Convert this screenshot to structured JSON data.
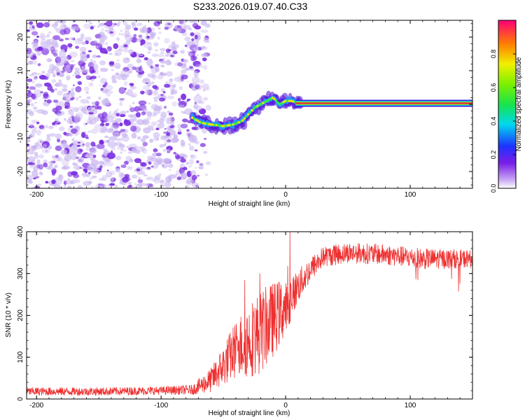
{
  "title": "S233.2026.019.07.40.C33",
  "colors": {
    "spectrogram_noise": "#7a2de0",
    "spectrogram_noise_light": "#c9b6f0",
    "signal_core": "#e8204a",
    "snr_line": "#ee3030",
    "axis": "#000000"
  },
  "chart_data": [
    {
      "type": "heatmap",
      "name": "spectrogram",
      "xlabel": "Height of straight line (km)",
      "ylabel": "Frequency (Hz)",
      "xlim": [
        -208,
        150
      ],
      "ylim": [
        -25,
        25
      ],
      "xticks": [
        -200,
        -100,
        0,
        100
      ],
      "xtick_labels": [
        "-200",
        "-100",
        "0",
        "100"
      ],
      "yticks": [
        -20,
        -10,
        0,
        10,
        20
      ],
      "ytick_labels": [
        "-20",
        "-10",
        "0",
        "10",
        "20"
      ],
      "noise_region_x": [
        -208,
        -70
      ],
      "signal_track": [
        {
          "x": -75,
          "y": -4
        },
        {
          "x": -68,
          "y": -5.5
        },
        {
          "x": -60,
          "y": -6
        },
        {
          "x": -50,
          "y": -6.5
        },
        {
          "x": -42,
          "y": -6
        },
        {
          "x": -35,
          "y": -5
        },
        {
          "x": -30,
          "y": -3
        },
        {
          "x": -25,
          "y": -1
        },
        {
          "x": -20,
          "y": 0
        },
        {
          "x": -15,
          "y": 1
        },
        {
          "x": -10,
          "y": 2
        },
        {
          "x": -5,
          "y": 0
        },
        {
          "x": 0,
          "y": 1
        },
        {
          "x": 5,
          "y": 1
        },
        {
          "x": 10,
          "y": 0.3
        },
        {
          "x": 150,
          "y": 0.3
        }
      ],
      "colorbar": {
        "label": "Normalized spectral amplitude",
        "range": [
          0,
          1
        ],
        "ticks": [
          0,
          0.2,
          0.4,
          0.6,
          0.8
        ],
        "tick_labels": [
          "0.0",
          "0.2",
          "0.4",
          "0.6",
          "0.8"
        ]
      }
    },
    {
      "type": "line",
      "name": "snr",
      "xlabel": "Height of straight line (km)",
      "ylabel": "SNR (10 * v/v)",
      "xlim": [
        -208,
        150
      ],
      "ylim": [
        0,
        400
      ],
      "xticks": [
        -200,
        -100,
        0,
        100
      ],
      "xtick_labels": [
        "-200",
        "-100",
        "0",
        "100"
      ],
      "yticks": [
        0,
        100,
        200,
        300,
        400
      ],
      "ytick_labels": [
        "0",
        "100",
        "200",
        "300",
        "400"
      ],
      "series": [
        {
          "name": "SNR",
          "color": "#ee3030",
          "envelope": [
            {
              "x": -208,
              "mean": 18,
              "spread": 10
            },
            {
              "x": -150,
              "mean": 18,
              "spread": 10
            },
            {
              "x": -100,
              "mean": 20,
              "spread": 10
            },
            {
              "x": -75,
              "mean": 22,
              "spread": 12
            },
            {
              "x": -60,
              "mean": 45,
              "spread": 30
            },
            {
              "x": -50,
              "mean": 80,
              "spread": 50
            },
            {
              "x": -40,
              "mean": 120,
              "spread": 70
            },
            {
              "x": -30,
              "mean": 140,
              "spread": 90
            },
            {
              "x": -20,
              "mean": 160,
              "spread": 100
            },
            {
              "x": -10,
              "mean": 190,
              "spread": 90
            },
            {
              "x": 0,
              "mean": 220,
              "spread": 70
            },
            {
              "x": 10,
              "mean": 270,
              "spread": 40
            },
            {
              "x": 20,
              "mean": 310,
              "spread": 30
            },
            {
              "x": 30,
              "mean": 340,
              "spread": 25
            },
            {
              "x": 50,
              "mean": 350,
              "spread": 25
            },
            {
              "x": 80,
              "mean": 345,
              "spread": 25
            },
            {
              "x": 110,
              "mean": 335,
              "spread": 25
            },
            {
              "x": 150,
              "mean": 335,
              "spread": 22
            }
          ]
        }
      ]
    }
  ]
}
